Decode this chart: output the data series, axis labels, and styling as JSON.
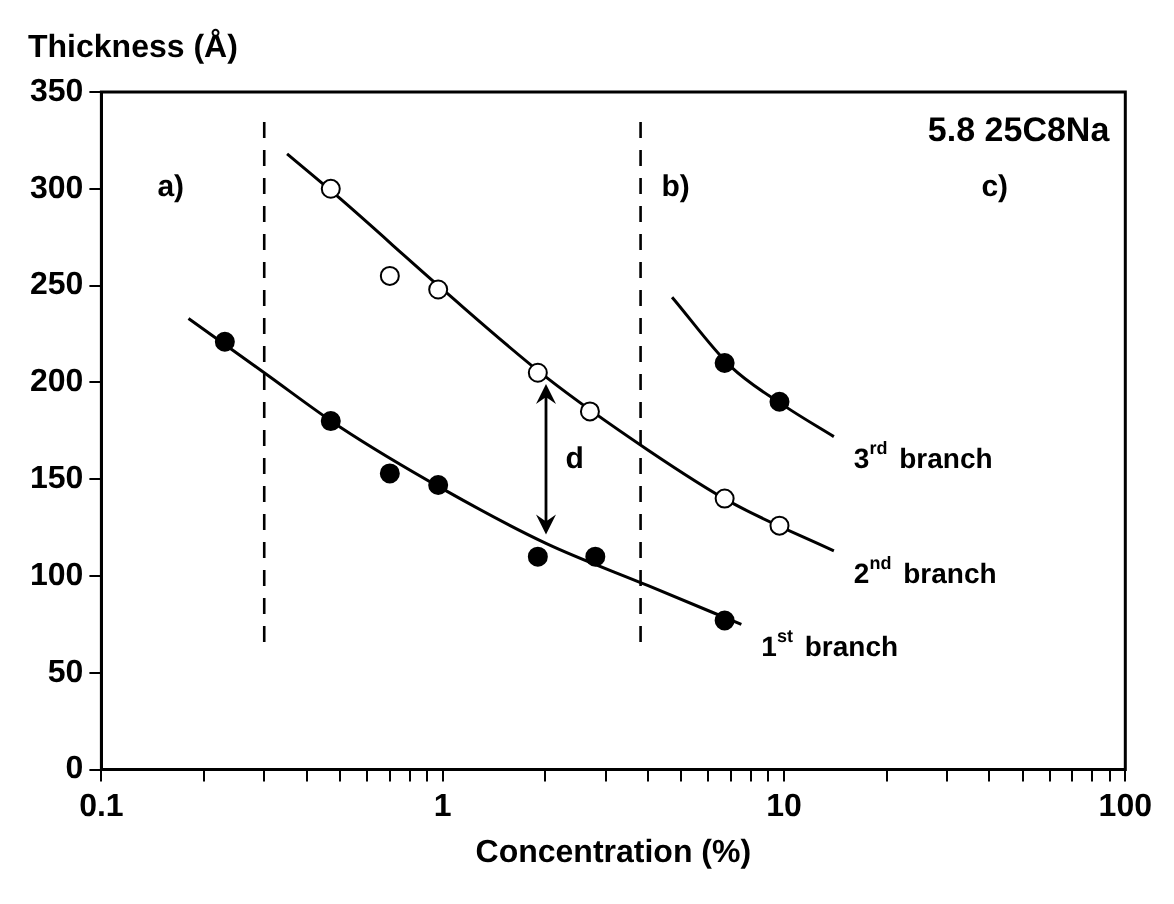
{
  "chart_data": {
    "type": "scatter",
    "xlabel": "Concentration (%)",
    "ylabel": "Thickness (Å)",
    "log": "x",
    "grid": false,
    "legend": false,
    "marker": "circle",
    "xlim": [
      0.1,
      100
    ],
    "ylim": [
      0,
      350
    ],
    "xticks": [
      0.1,
      {
        "value": 0.2,
        "label": null
      },
      {
        "value": 0.3,
        "label": null
      },
      {
        "value": 0.4,
        "label": null
      },
      {
        "value": 0.5,
        "label": null
      },
      {
        "value": 0.6,
        "label": null
      },
      {
        "value": 0.7,
        "label": null
      },
      {
        "value": 0.8,
        "label": null
      },
      {
        "value": 0.9,
        "label": null
      },
      1,
      {
        "value": 2,
        "label": null
      },
      {
        "value": 3,
        "label": null
      },
      {
        "value": 4,
        "label": null
      },
      {
        "value": 5,
        "label": null
      },
      {
        "value": 6,
        "label": null
      },
      {
        "value": 7,
        "label": null
      },
      {
        "value": 8,
        "label": null
      },
      {
        "value": 9,
        "label": null
      },
      10,
      {
        "value": 20,
        "label": null
      },
      {
        "value": 30,
        "label": null
      },
      {
        "value": 40,
        "label": null
      },
      {
        "value": 50,
        "label": null
      },
      {
        "value": 60,
        "label": null
      },
      {
        "value": 70,
        "label": null
      },
      {
        "value": 80,
        "label": null
      },
      {
        "value": 90,
        "label": null
      },
      100
    ],
    "yticks": [
      0,
      50,
      100,
      150,
      200,
      250,
      300,
      350
    ],
    "series": [
      {
        "color": "#000000",
        "x": [
          0.23,
          0.47,
          0.7,
          0.97,
          1.9,
          2.8,
          6.7
        ],
        "values": [
          221,
          180,
          153,
          147,
          110,
          110,
          77
        ]
      },
      {
        "color": "#000000",
        "marker": "open circle",
        "x": [
          0.47,
          0.7,
          0.97,
          1.9,
          2.7,
          6.7,
          9.7
        ],
        "values": [
          300,
          255,
          248,
          205,
          185,
          140,
          126
        ]
      },
      {
        "color": "#000000",
        "x": [
          6.7,
          9.7
        ],
        "values": [
          210,
          190
        ]
      },
      {
        "type": "line",
        "color": "#000000",
        "marker": "none",
        "x": [
          0.18,
          0.3,
          0.5,
          1,
          2,
          4,
          7.5
        ],
        "values": [
          233,
          205,
          177,
          145,
          117,
          95,
          75
        ]
      },
      {
        "type": "line",
        "color": "#000000",
        "marker": "none",
        "x": [
          0.35,
          0.5,
          1,
          2,
          4,
          7,
          14
        ],
        "values": [
          318,
          295,
          248,
          203,
          165,
          138,
          113
        ]
      },
      {
        "type": "line",
        "color": "#000000",
        "marker": "none",
        "x": [
          4.7,
          7,
          10,
          14
        ],
        "values": [
          244,
          208,
          188,
          172
        ]
      }
    ],
    "ref_lines": [
      {
        "axis": "x",
        "value": 0.3,
        "line_style": "dashed"
      },
      {
        "axis": "x",
        "value": 3.8,
        "line_style": "dashed"
      }
    ],
    "annotations": [
      "5.8 25C8Na",
      "a)",
      "b)",
      "c)",
      "d",
      "1$^{st}$ branch",
      "2$^{nd}$ branch",
      "3$^{rd}$ branch"
    ]
  }
}
